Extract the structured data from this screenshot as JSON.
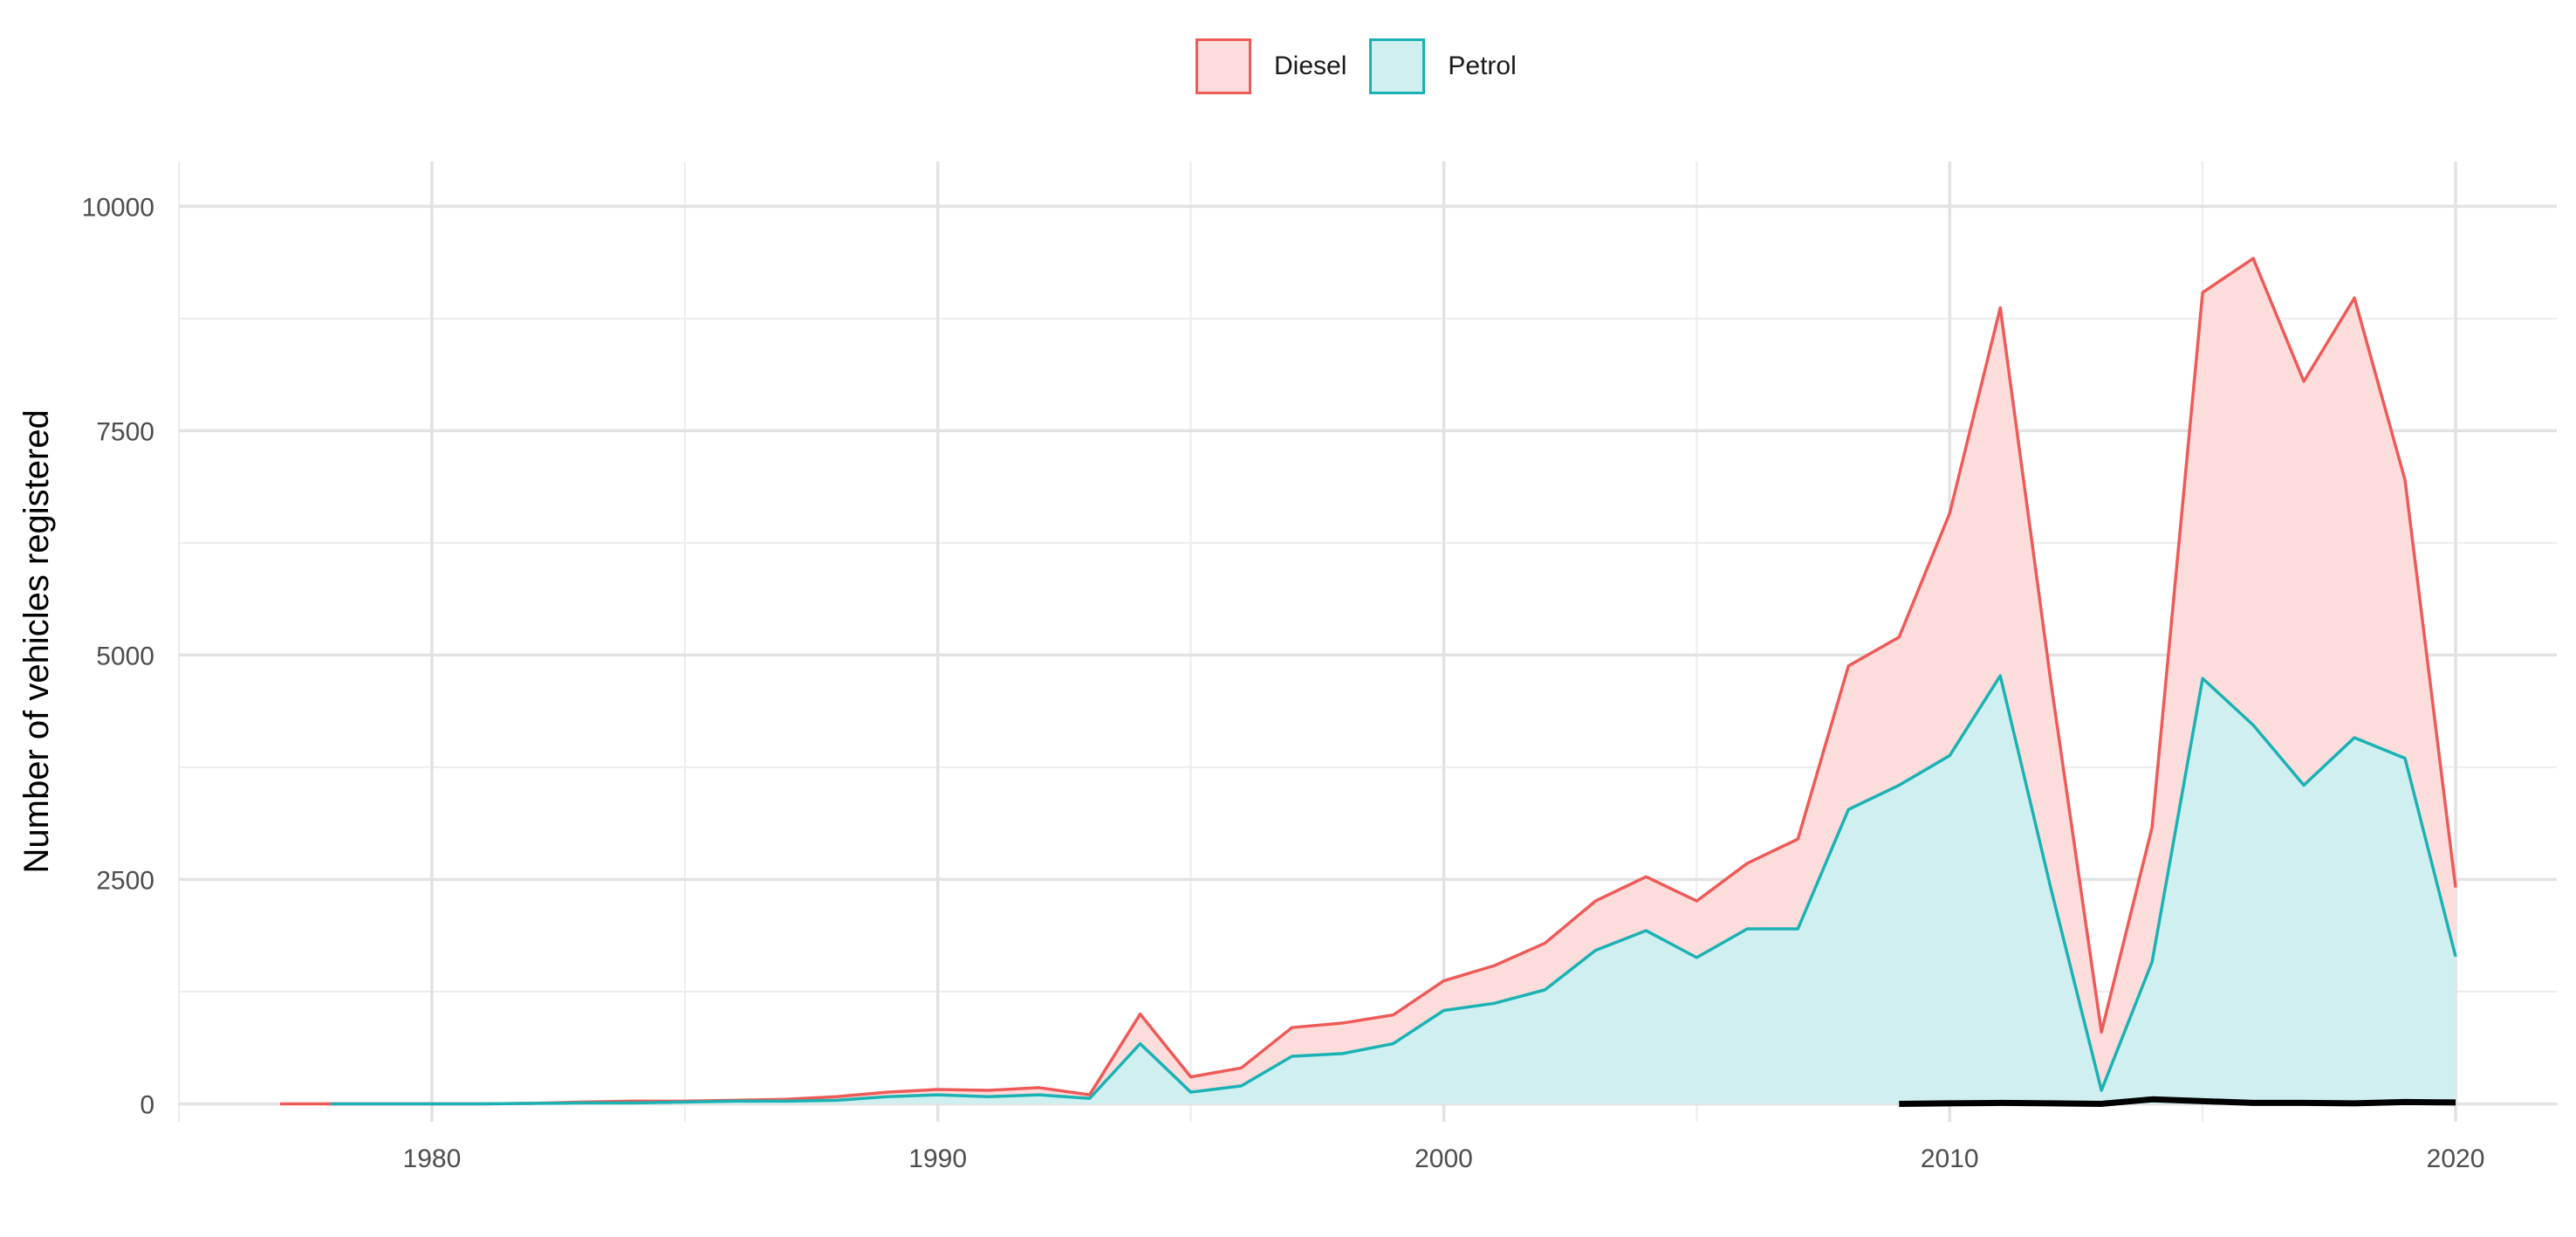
{
  "chart_data": {
    "type": "area",
    "stacked": true,
    "title": "",
    "xlabel": "",
    "ylabel": "Number of vehicles registered",
    "xlim": [
      1975,
      2022
    ],
    "ylim": [
      -200,
      10500
    ],
    "x_ticks": [
      1980,
      1990,
      2000,
      2010,
      2020
    ],
    "y_ticks": [
      0,
      2500,
      5000,
      7500,
      10000
    ],
    "grid": true,
    "legend_position": "top",
    "colors": {
      "diesel_line": "#ee5a58",
      "diesel_fill": "#fddddc",
      "petrol_line": "#1ab2b3",
      "petrol_fill": "#d0eff0",
      "overlay_line": "#000000"
    },
    "series": [
      {
        "name": "Diesel",
        "x": [
          1977,
          1978,
          1979,
          1980,
          1981,
          1982,
          1983,
          1984,
          1985,
          1986,
          1987,
          1988,
          1989,
          1990,
          1991,
          1992,
          1993,
          1994,
          1995,
          1996,
          1997,
          1998,
          1999,
          2000,
          2001,
          2002,
          2003,
          2004,
          2005,
          2006,
          2007,
          2008,
          2009,
          2010,
          2011,
          2012,
          2013,
          2014,
          2015,
          2016,
          2017,
          2018,
          2019,
          2020
        ],
        "values": [
          0,
          0,
          0,
          0,
          0,
          0,
          10,
          20,
          10,
          10,
          20,
          40,
          50,
          60,
          70,
          80,
          40,
          330,
          170,
          200,
          320,
          340,
          320,
          330,
          420,
          520,
          550,
          600,
          630,
          730,
          1000,
          1600,
          1650,
          2700,
          4100,
          2300,
          650,
          1500,
          4300,
          5200,
          4500,
          4900,
          3100,
          770
        ]
      },
      {
        "name": "Petrol",
        "x": [
          1978,
          1979,
          1980,
          1981,
          1982,
          1983,
          1984,
          1985,
          1986,
          1987,
          1988,
          1989,
          1990,
          1991,
          1992,
          1993,
          1994,
          1995,
          1996,
          1997,
          1998,
          1999,
          2000,
          2001,
          2002,
          2003,
          2004,
          2005,
          2006,
          2007,
          2008,
          2009,
          2010,
          2011,
          2012,
          2013,
          2014,
          2015,
          2016,
          2017,
          2018,
          2019,
          2020
        ],
        "values": [
          0,
          0,
          0,
          0,
          5,
          10,
          10,
          20,
          30,
          30,
          40,
          80,
          100,
          80,
          100,
          60,
          670,
          130,
          200,
          530,
          560,
          670,
          1040,
          1120,
          1270,
          1710,
          1930,
          1630,
          1950,
          1950,
          3280,
          3550,
          3880,
          4770,
          2400,
          150,
          1580,
          4740,
          4220,
          3550,
          4080,
          3850,
          1640
        ]
      },
      {
        "name": "",
        "x": [
          2009,
          2010,
          2011,
          2012,
          2013,
          2014,
          2015,
          2016,
          2017,
          2018,
          2019,
          2020
        ],
        "values": [
          0,
          5,
          10,
          5,
          0,
          50,
          30,
          10,
          10,
          5,
          20,
          15
        ]
      }
    ]
  },
  "legend": {
    "items": [
      {
        "label": "Diesel"
      },
      {
        "label": "Petrol"
      }
    ]
  }
}
